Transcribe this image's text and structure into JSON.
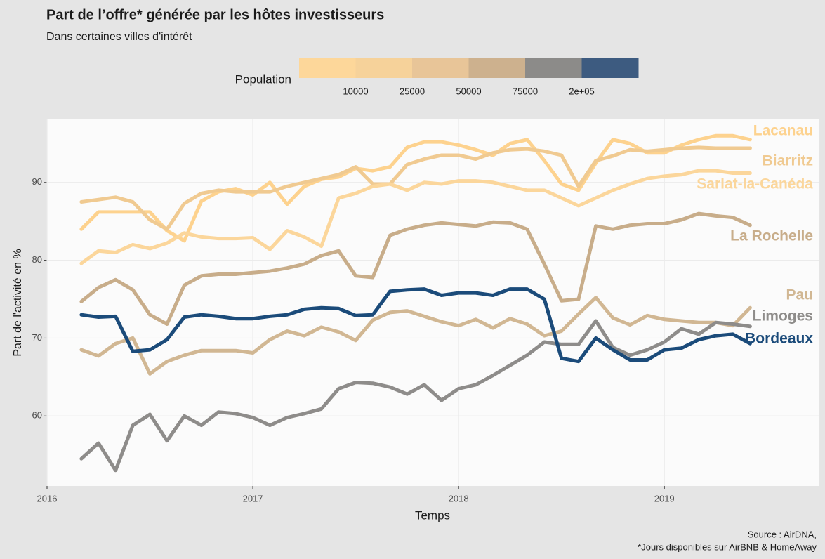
{
  "chart_data": {
    "type": "line",
    "title": "Part de l’offre* générée par les hôtes investisseurs",
    "subtitle": "Dans certaines villes d'intérêt",
    "x_label": "Temps",
    "y_label": "Part de l'activité en %",
    "caption": [
      "Source : AirDNA,",
      "*Jours disponibles sur AirBNB & HomeAway"
    ],
    "legend": {
      "title": "Population",
      "colors": [
        "#fdd79a",
        "#f6d29a",
        "#e8c598",
        "#cdb18e",
        "#8c8b89",
        "#3d5b80"
      ],
      "breaks": [
        10000,
        25000,
        50000,
        75000,
        {
          "value": 200000,
          "label": "2e+05"
        }
      ]
    },
    "xlim": [
      2016,
      2019.75
    ],
    "xticks": [
      2016,
      2017,
      2018,
      2019
    ],
    "ylim": [
      51,
      98.1
    ],
    "yticks": [
      60,
      70,
      80,
      90
    ],
    "grid": true,
    "x": [
      2016.167,
      2016.25,
      2016.333,
      2016.417,
      2016.5,
      2016.583,
      2016.667,
      2016.75,
      2016.833,
      2016.917,
      2017,
      2017.083,
      2017.167,
      2017.25,
      2017.333,
      2017.417,
      2017.5,
      2017.583,
      2017.667,
      2017.75,
      2017.833,
      2017.917,
      2018,
      2018.083,
      2018.167,
      2018.25,
      2018.333,
      2018.417,
      2018.5,
      2018.583,
      2018.667,
      2018.75,
      2018.833,
      2018.917,
      2019,
      2019.083,
      2019.167,
      2019.25,
      2019.333,
      2019.417
    ],
    "series": [
      {
        "name": "Lacanau",
        "color": "#fdd28e",
        "values": [
          84,
          86.2,
          86.2,
          86.2,
          86.2,
          83.8,
          82.5,
          87.6,
          88.8,
          89.2,
          88.4,
          90,
          87.2,
          89.5,
          90.4,
          90.7,
          91.8,
          91.5,
          92,
          94.5,
          95.2,
          95.2,
          94.8,
          94.2,
          93.5,
          95,
          95.5,
          92.8,
          89.8,
          89,
          92.5,
          95.5,
          95,
          93.8,
          93.8,
          94.8,
          95.5,
          96,
          96,
          95.5
        ]
      },
      {
        "name": "Biarritz",
        "color": "#f0ca91",
        "values": [
          87.5,
          87.8,
          88.1,
          87.5,
          85.2,
          84,
          87.3,
          88.6,
          89,
          88.8,
          88.8,
          88.8,
          89.5,
          90,
          90.5,
          91,
          92,
          89.8,
          89.8,
          92.3,
          93,
          93.5,
          93.5,
          93,
          93.8,
          94.2,
          94.3,
          94,
          93.5,
          89.5,
          92.8,
          93.4,
          94.2,
          94,
          94.2,
          94.4,
          94.5,
          94.4,
          94.4,
          94.4
        ]
      },
      {
        "name": "Sarlat-la-Canéda",
        "color": "#fbd69b",
        "values": [
          79.6,
          81.2,
          81,
          82,
          81.5,
          82.2,
          83.5,
          83,
          82.8,
          82.8,
          82.9,
          81.4,
          83.8,
          83,
          81.8,
          88,
          88.6,
          89.5,
          89.8,
          89,
          90,
          89.8,
          90.2,
          90.2,
          90,
          89.5,
          89,
          89,
          88,
          87,
          88,
          89,
          89.8,
          90.5,
          90.8,
          91,
          91.5,
          91.5,
          91.2,
          91.2
        ]
      },
      {
        "name": "La Rochelle",
        "color": "#c8ad8a",
        "values": [
          74.7,
          76.5,
          77.5,
          76.2,
          73,
          71.8,
          76.8,
          78,
          78.2,
          78.2,
          78.4,
          78.6,
          79,
          79.5,
          80.6,
          81.2,
          78,
          77.8,
          83.2,
          84,
          84.5,
          84.8,
          84.6,
          84.4,
          84.9,
          84.8,
          84,
          79.5,
          74.8,
          75,
          84.4,
          84,
          84.5,
          84.7,
          84.7,
          85.2,
          86,
          85.7,
          85.5,
          84.5
        ]
      },
      {
        "name": "Pau",
        "color": "#d1b793",
        "values": [
          68.5,
          67.7,
          69.3,
          70,
          65.4,
          67,
          67.8,
          68.4,
          68.4,
          68.4,
          68.1,
          69.8,
          70.9,
          70.3,
          71.4,
          70.8,
          69.7,
          72.3,
          73.3,
          73.5,
          72.8,
          72.1,
          71.6,
          72.4,
          71.3,
          72.5,
          71.8,
          70.3,
          70.9,
          73.1,
          75.2,
          72.6,
          71.7,
          72.9,
          72.4,
          72.2,
          72,
          72,
          71.6,
          73.9
        ]
      },
      {
        "name": "Limoges",
        "color": "#8e8c8a",
        "values": [
          54.5,
          56.5,
          53,
          58.8,
          60.2,
          56.8,
          60,
          58.8,
          60.5,
          60.3,
          59.8,
          58.8,
          59.8,
          60.3,
          60.9,
          63.5,
          64.3,
          64.2,
          63.7,
          62.8,
          64,
          62,
          63.5,
          64,
          65.2,
          66.5,
          67.8,
          69.5,
          69.2,
          69.2,
          72.2,
          68.8,
          67.8,
          68.5,
          69.5,
          71.2,
          70.5,
          72,
          71.8,
          71.5
        ]
      },
      {
        "name": "Bordeaux",
        "color": "#1b4b7a",
        "values": [
          73,
          72.7,
          72.8,
          68.3,
          68.5,
          69.8,
          72.7,
          73,
          72.8,
          72.5,
          72.5,
          72.8,
          73,
          73.7,
          73.9,
          73.8,
          72.9,
          73,
          76,
          76.2,
          76.3,
          75.5,
          75.8,
          75.8,
          75.5,
          76.3,
          76.3,
          75,
          67.4,
          67,
          70,
          68.5,
          67.2,
          67.2,
          68.5,
          68.7,
          69.8,
          70.3,
          70.5,
          69.3
        ]
      }
    ]
  }
}
